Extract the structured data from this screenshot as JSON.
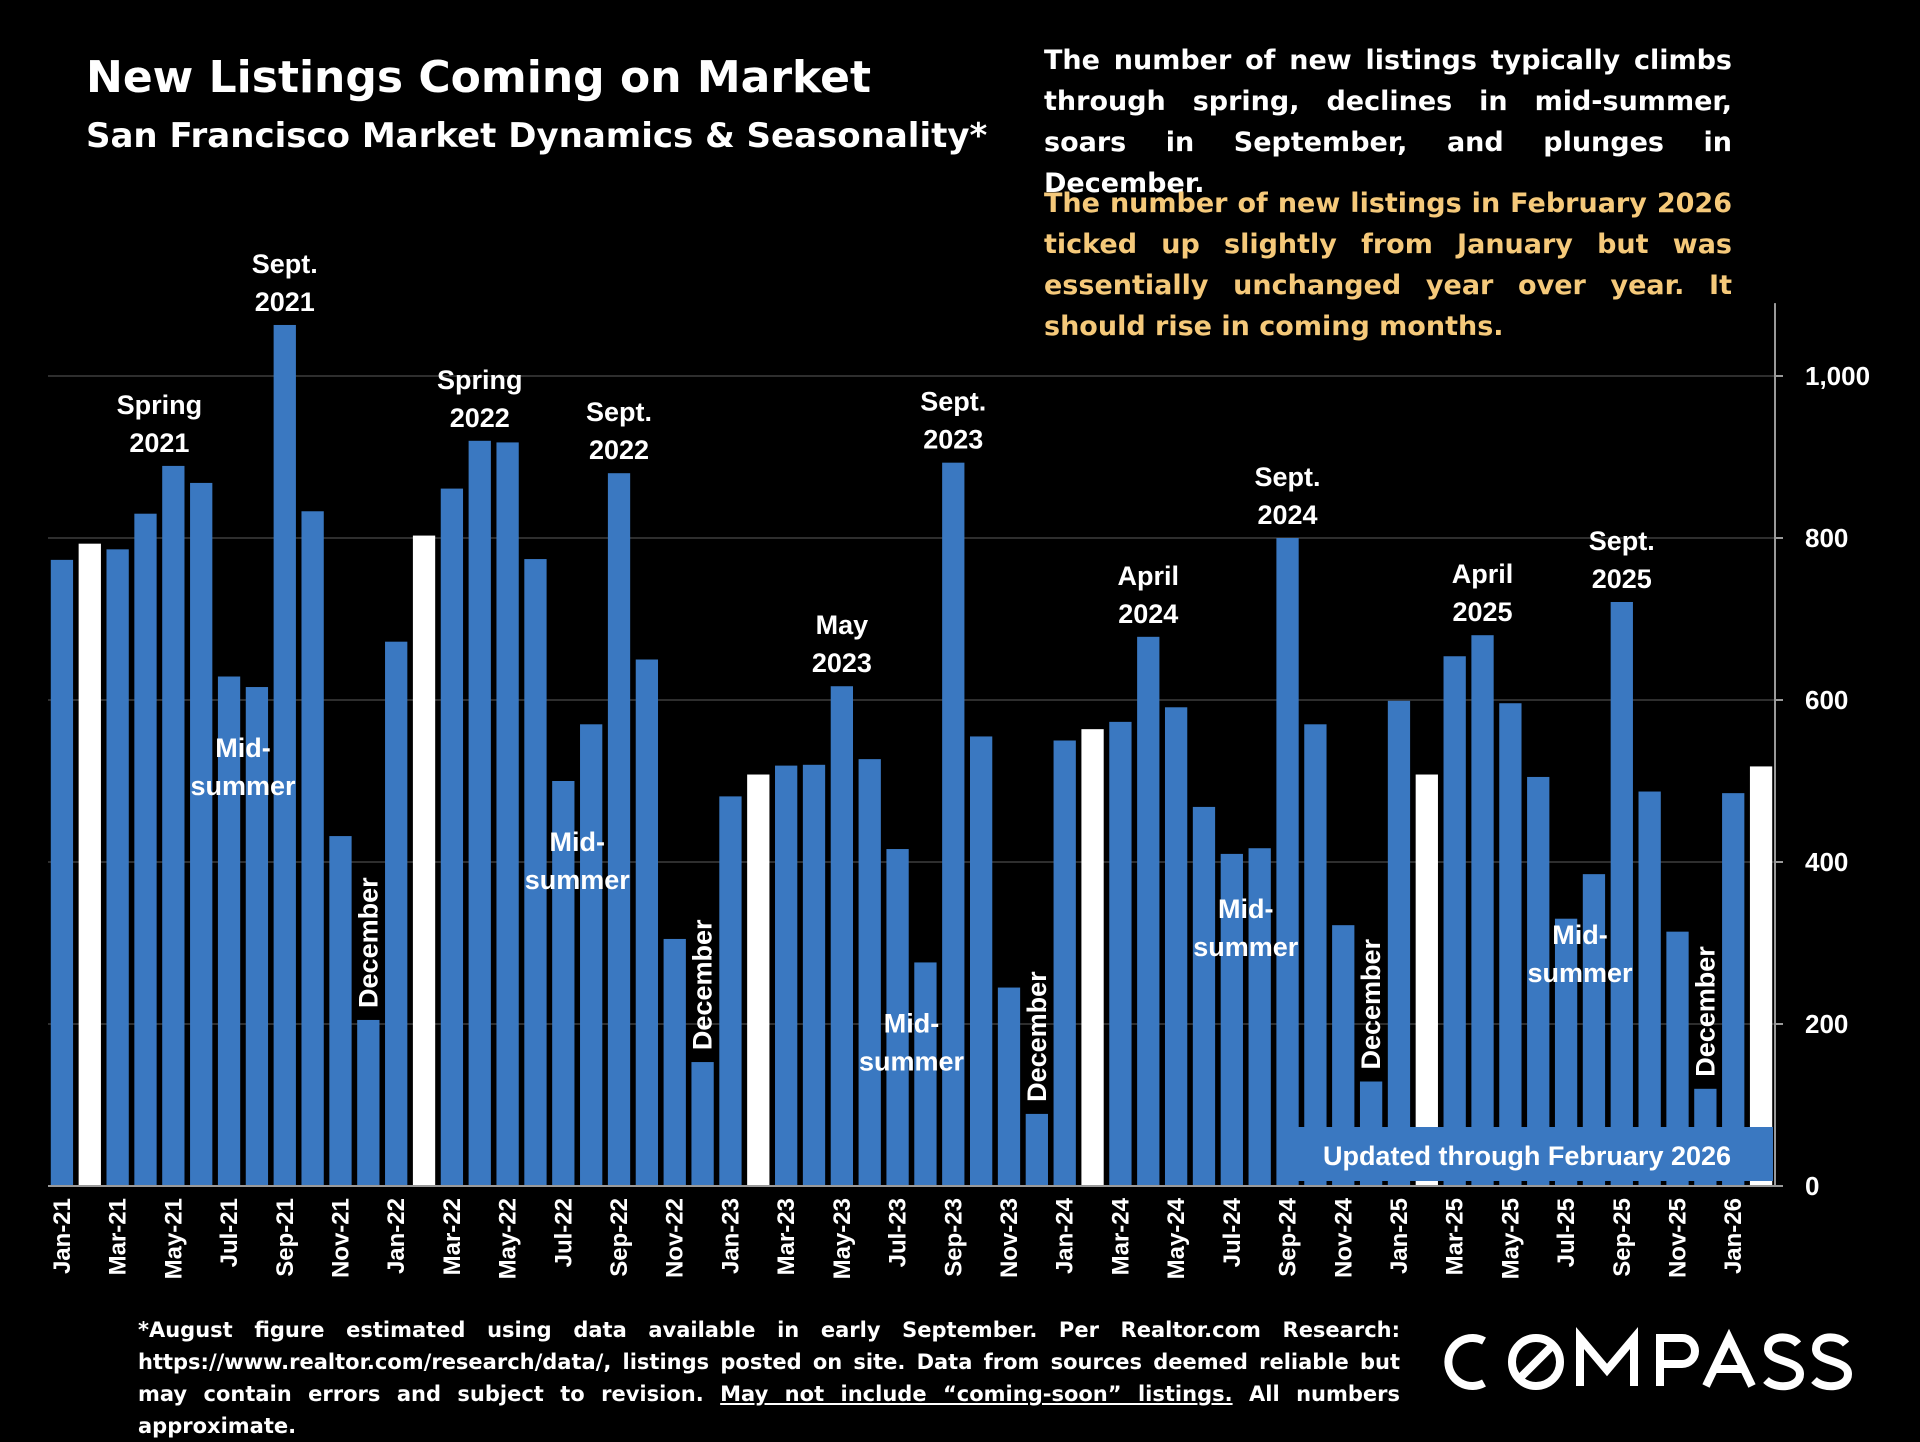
{
  "header": {
    "title": "New Listings Coming on Market",
    "subtitle": "San Francisco Market Dynamics & Seasonality*"
  },
  "commentary": {
    "general": "The number of new listings typically climbs through spring, declines in mid-summer, soars in September, and plunges in December.",
    "latest": "The number of new listings in February 2026 ticked up slightly from January but was essentially unchanged year over year. It should rise in coming months."
  },
  "footnote": {
    "text": "*August figure estimated using data available in early September. Per Realtor.com Research: https://www.realtor.com/research/data/, listings posted on site. Data from sources deemed reliable but may contain errors and subject to revision.",
    "underlined": "May not include “coming-soon” listings.",
    "tail": "All numbers approximate."
  },
  "brand": {
    "logo_text": "COMPASS"
  },
  "colors": {
    "background": "#000000",
    "bar": "#3a78c1",
    "february_bar": "#ffffff",
    "latest_note": "#f5c97a",
    "updated_box": "#3a78c1"
  },
  "chart_data": {
    "type": "bar",
    "x": [
      "Jan-21",
      "Feb-21",
      "Mar-21",
      "Apr-21",
      "May-21",
      "Jun-21",
      "Jul-21",
      "Aug-21",
      "Sep-21",
      "Oct-21",
      "Nov-21",
      "Dec-21",
      "Jan-22",
      "Feb-22",
      "Mar-22",
      "Apr-22",
      "May-22",
      "Jun-22",
      "Jul-22",
      "Aug-22",
      "Sep-22",
      "Oct-22",
      "Nov-22",
      "Dec-22",
      "Jan-23",
      "Feb-23",
      "Mar-23",
      "Apr-23",
      "May-23",
      "Jun-23",
      "Jul-23",
      "Aug-23",
      "Sep-23",
      "Oct-23",
      "Nov-23",
      "Dec-23",
      "Jan-24",
      "Feb-24",
      "Mar-24",
      "Apr-24",
      "May-24",
      "Jun-24",
      "Jul-24",
      "Aug-24",
      "Sep-24",
      "Oct-24",
      "Nov-24",
      "Dec-24",
      "Jan-25",
      "Feb-25",
      "Mar-25",
      "Apr-25",
      "May-25",
      "Jun-25",
      "Jul-25",
      "Aug-25",
      "Sep-25",
      "Oct-25",
      "Nov-25",
      "Dec-25",
      "Jan-26",
      "Feb-26"
    ],
    "values": [
      773,
      793,
      786,
      830,
      889,
      868,
      629,
      616,
      1063,
      833,
      432,
      205,
      672,
      803,
      861,
      920,
      918,
      774,
      500,
      570,
      880,
      650,
      305,
      153,
      481,
      508,
      519,
      520,
      617,
      527,
      416,
      276,
      893,
      555,
      245,
      89,
      550,
      564,
      573,
      678,
      591,
      468,
      410,
      417,
      800,
      570,
      322,
      129,
      599,
      508,
      654,
      680,
      596,
      505,
      330,
      385,
      721,
      487,
      314,
      120,
      485,
      518
    ],
    "highlight": "February bars shown in white",
    "x_tick_labels": [
      "Jan-21",
      "Mar-21",
      "May-21",
      "Jul-21",
      "Sep-21",
      "Nov-21",
      "Jan-22",
      "Mar-22",
      "May-22",
      "Jul-22",
      "Sep-22",
      "Nov-22",
      "Jan-23",
      "Mar-23",
      "May-23",
      "Jul-23",
      "Sep-23",
      "Nov-23",
      "Jan-24",
      "Mar-24",
      "May-24",
      "Jul-24",
      "Sep-24",
      "Nov-24",
      "Jan-25",
      "Mar-25",
      "May-25",
      "Jul-25",
      "Sep-25",
      "Nov-25",
      "Jan-26"
    ],
    "y_ticks": [
      "0",
      "200",
      "400",
      "600",
      "800",
      "1,000"
    ],
    "y_tick_values": [
      0,
      200,
      400,
      600,
      800,
      1000
    ],
    "ylim": [
      0,
      1100
    ],
    "y_axis_side": "right",
    "grid": true,
    "annotations": [
      {
        "text": [
          "Spring",
          "2021"
        ],
        "x_index": 3.5,
        "value": 889
      },
      {
        "text": [
          "Sept.",
          "2021"
        ],
        "x_index": 8,
        "value": 1063
      },
      {
        "text": [
          "Mid-",
          "summer"
        ],
        "x_index": 6.5,
        "value": 616,
        "inside": true
      },
      {
        "text": [
          "December"
        ],
        "x_index": 11,
        "value": 205,
        "vertical": true
      },
      {
        "text": [
          "Spring",
          "2022"
        ],
        "x_index": 15,
        "value": 920
      },
      {
        "text": [
          "Sept.",
          "2022"
        ],
        "x_index": 20,
        "value": 880
      },
      {
        "text": [
          "Mid-",
          "summer"
        ],
        "x_index": 18.5,
        "value": 500,
        "inside": true
      },
      {
        "text": [
          "December"
        ],
        "x_index": 23,
        "value": 153,
        "vertical": true
      },
      {
        "text": [
          "May",
          "2023"
        ],
        "x_index": 28,
        "value": 617
      },
      {
        "text": [
          "Sept.",
          "2023"
        ],
        "x_index": 32,
        "value": 893
      },
      {
        "text": [
          "Mid-",
          "summer"
        ],
        "x_index": 30.5,
        "value": 276,
        "inside": true
      },
      {
        "text": [
          "December"
        ],
        "x_index": 35,
        "value": 89,
        "vertical": true
      },
      {
        "text": [
          "April",
          "2024"
        ],
        "x_index": 39,
        "value": 678
      },
      {
        "text": [
          "Sept.",
          "2024"
        ],
        "x_index": 44,
        "value": 800
      },
      {
        "text": [
          "Mid-",
          "summer"
        ],
        "x_index": 42.5,
        "value": 417,
        "inside": true
      },
      {
        "text": [
          "December"
        ],
        "x_index": 47,
        "value": 129,
        "vertical": true
      },
      {
        "text": [
          "April",
          "2025"
        ],
        "x_index": 51,
        "value": 680
      },
      {
        "text": [
          "Sept.",
          "2025"
        ],
        "x_index": 56,
        "value": 721
      },
      {
        "text": [
          "Mid-",
          "summer"
        ],
        "x_index": 54.5,
        "value": 385,
        "inside": true
      },
      {
        "text": [
          "December"
        ],
        "x_index": 59,
        "value": 120,
        "vertical": true
      }
    ],
    "update_note": "Updated through February 2026"
  }
}
